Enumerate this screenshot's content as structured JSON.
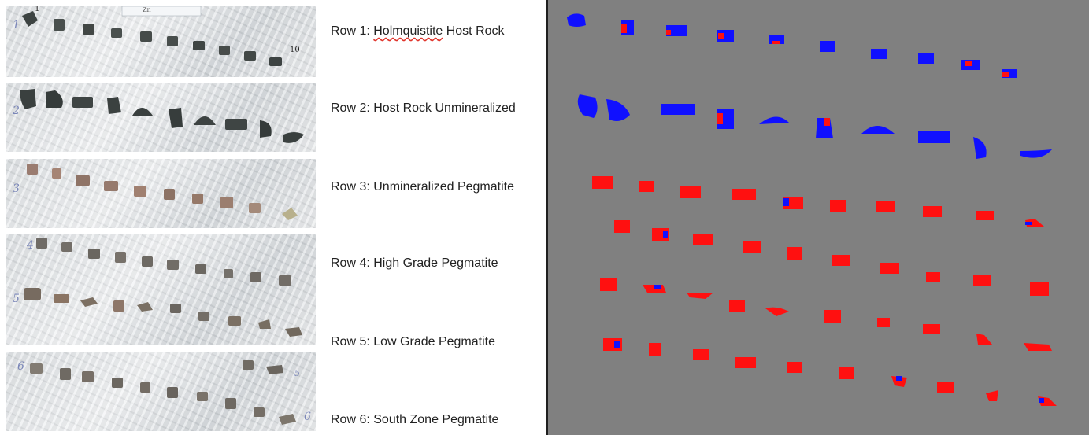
{
  "photos": {
    "row1": {
      "num_start": "1",
      "num_end": "10",
      "marker": "1",
      "tag": "Zn"
    },
    "row2": {
      "num": "2"
    },
    "row3": {
      "num": "3"
    },
    "row45": {
      "num_top": "4",
      "num_bottom": "5"
    },
    "row6": {
      "num": "6",
      "num_end": "6",
      "marker_right": "5"
    }
  },
  "labels": [
    {
      "prefix": "Row 1: ",
      "spell": "Holmquistite",
      "suffix": " Host Rock"
    },
    {
      "text": "Row 2: Host Rock Unmineralized"
    },
    {
      "text": "Row 3: Unmineralized Pegmatite"
    },
    {
      "text": "Row 4: High Grade Pegmatite"
    },
    {
      "text": "Row 5: Low Grade Pegmatite"
    },
    {
      "text": "Row 6: South Zone Pegmatite"
    }
  ],
  "colors": {
    "background_gray": "#808080",
    "class_blue": "#1010ff",
    "class_red": "#ff1010",
    "rock_dark": "#3d4342",
    "rock_pink": "#9d7d6f",
    "rock_gray": "#6b6b66"
  }
}
